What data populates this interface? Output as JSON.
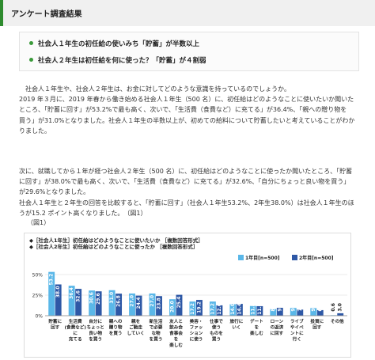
{
  "section": {
    "title": "アンケート調査結果"
  },
  "summary": [
    "社会人１年生の初任給の使いみち「貯蓄」が半数以上",
    "社会人２年生は初任給を何に使った？「貯蓄」が４割弱"
  ],
  "paragraph1": [
    "　社会人１年生や、社会人２年生は、お金に対してどのような意識を持っているのでしょうか。",
    "2019 年３月に、2019 年春から働き始める社会人１年生（500 名）に、初任給はどのようなことに使いたいか聞いた",
    "ところ、「貯蓄に回す」が53.2%で最も高く、次いで、「生活費（食費など）に充てる」が36.4%、「親への贈り物を",
    "買う」が31.0%となりました。社会人１年生の半数以上が、初めての給料について貯蓄したいと考えていることがわか",
    "りました。"
  ],
  "paragraph2": [
    "次に、就職してから１年が経つ社会人２年生（500 名）に、初任給はどのようなことに使ったか聞いたところ、「貯蓄",
    "に回す」が38.0%で最も高く、次いで、「生活費（食費など）に充てる」が32.6%、「自分にちょっと良い物を買う」",
    "が29.6%となりました。",
    "社会人１年生と２年生の回答を比較すると、「貯蓄に回す」（社会人１年生53.2%、2年生38.0%）は社会人１年生のほ",
    "うが15.2 ポイント高くなりました。　（図1）"
  ],
  "figure_label": "（図1）",
  "chart_data": {
    "type": "bar",
    "titles": [
      "◆［社会人1年生］初任給はどのようなことに使いたいか ［複数回答形式］",
      "◆［社会人2年生］初任給はどのようなことに使ったか ［複数回答形式］"
    ],
    "legend_position": "top-right",
    "ylim": [
      0,
      50
    ],
    "yticks": [
      "50%",
      "25%",
      "0%"
    ],
    "grid": true,
    "categories": [
      [
        "貯蓄に",
        "回す"
      ],
      [
        "生活費",
        "(食費など)",
        "に",
        "充てる"
      ],
      [
        "自分に",
        "ちょっと",
        "良い物",
        "を買う"
      ],
      [
        "親への",
        "贈り物",
        "を買う"
      ],
      [
        "親を",
        "ご馳走",
        "していく"
      ],
      [
        "新生活",
        "で必要",
        "な物",
        "を買う"
      ],
      [
        "友人と",
        "飲み会",
        "食事会",
        "を",
        "楽しむ"
      ],
      [
        "美容・",
        "ファッ",
        "ション",
        "に使う"
      ],
      [
        "仕事で",
        "使う",
        "ものを",
        "買う"
      ],
      [
        "旅行に",
        "いく"
      ],
      [
        "デート",
        "を",
        "楽しむ"
      ],
      [
        "ローン",
        "の返済",
        "に回す"
      ],
      [
        "ライブ",
        "やイベ",
        "ントに",
        "行く"
      ],
      [
        "投資に",
        "回す"
      ],
      [
        "その他"
      ]
    ],
    "series": [
      {
        "name": "1年目[n=500]",
        "color": "#5ab7e8",
        "values": [
          53.2,
          36.4,
          30.6,
          31.0,
          27.0,
          27.0,
          20.0,
          17.2,
          17.2,
          14.0,
          11.8,
          8.0,
          9.4,
          9.2,
          0.6
        ]
      },
      {
        "name": "2年目[n=500]",
        "color": "#2e58a6",
        "values": [
          38.0,
          32.6,
          29.6,
          26.8,
          24.4,
          23.8,
          25.4,
          19.2,
          12.6,
          14.4,
          11.6,
          9.6,
          7.4,
          6.8,
          3.0
        ]
      }
    ]
  }
}
